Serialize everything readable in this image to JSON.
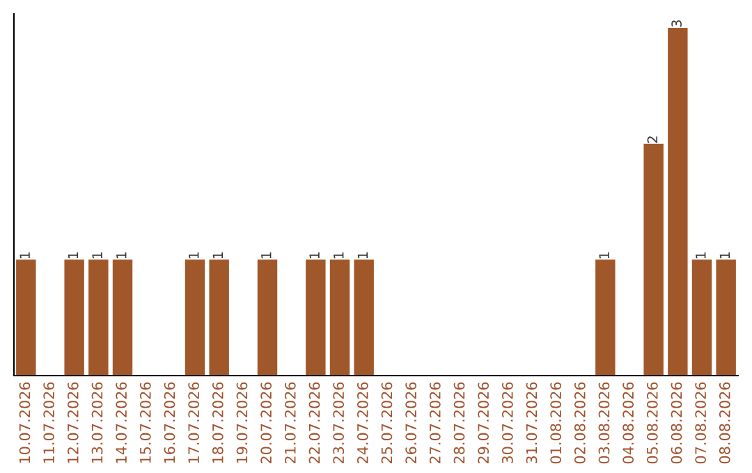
{
  "chart_data": {
    "type": "bar",
    "categories": [
      "10.07.2026",
      "11.07.2026",
      "12.07.2026",
      "13.07.2026",
      "14.07.2026",
      "15.07.2026",
      "16.07.2026",
      "17.07.2026",
      "18.07.2026",
      "19.07.2026",
      "20.07.2026",
      "21.07.2026",
      "22.07.2026",
      "23.07.2026",
      "24.07.2026",
      "25.07.2026",
      "26.07.2026",
      "27.07.2026",
      "28.07.2026",
      "29.07.2026",
      "30.07.2026",
      "31.07.2026",
      "01.08.2026",
      "02.08.2026",
      "03.08.2026",
      "04.08.2026",
      "05.08.2026",
      "06.08.2026",
      "07.08.2026",
      "08.08.2026"
    ],
    "values": [
      1,
      0,
      1,
      1,
      1,
      0,
      0,
      1,
      1,
      0,
      1,
      0,
      1,
      1,
      1,
      0,
      0,
      0,
      0,
      0,
      0,
      0,
      0,
      0,
      1,
      0,
      2,
      3,
      1,
      1
    ],
    "value_labels": [
      "1",
      null,
      "1",
      "1",
      "1",
      null,
      null,
      "1",
      "1",
      null,
      "1",
      null,
      "1",
      "1",
      "1",
      null,
      null,
      null,
      null,
      null,
      null,
      null,
      null,
      null,
      "1",
      null,
      "2",
      "3",
      "1",
      "1"
    ],
    "color": "#a0572a",
    "grid": false,
    "legend": false
  }
}
